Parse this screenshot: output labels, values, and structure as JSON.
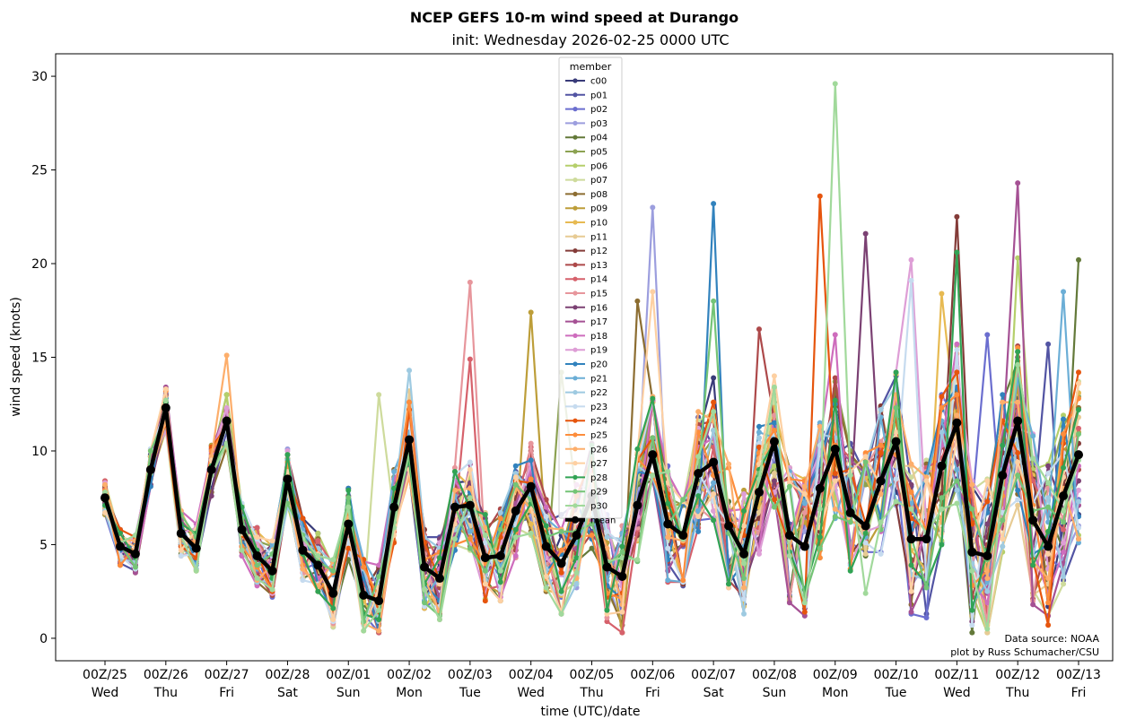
{
  "chart_data": {
    "type": "line",
    "title": "NCEP GEFS 10-m wind speed at Durango",
    "subtitle": "init: Wednesday 2026-02-25 0000 UTC",
    "xlabel": "time (UTC)/date",
    "ylabel": "wind speed (knots)",
    "ylim": [
      -1.2,
      31.2
    ],
    "yticks": [
      0,
      5,
      10,
      15,
      20,
      25,
      30
    ],
    "time_step_hours": 6,
    "x_ticks": [
      {
        "hour": 0,
        "line1": "00Z/25",
        "line2": "Wed"
      },
      {
        "hour": 24,
        "line1": "00Z/26",
        "line2": "Thu"
      },
      {
        "hour": 48,
        "line1": "00Z/27",
        "line2": "Fri"
      },
      {
        "hour": 72,
        "line1": "00Z/28",
        "line2": "Sat"
      },
      {
        "hour": 96,
        "line1": "00Z/01",
        "line2": "Sun"
      },
      {
        "hour": 120,
        "line1": "00Z/02",
        "line2": "Mon"
      },
      {
        "hour": 144,
        "line1": "00Z/03",
        "line2": "Tue"
      },
      {
        "hour": 168,
        "line1": "00Z/04",
        "line2": "Wed"
      },
      {
        "hour": 192,
        "line1": "00Z/05",
        "line2": "Thu"
      },
      {
        "hour": 216,
        "line1": "00Z/06",
        "line2": "Fri"
      },
      {
        "hour": 240,
        "line1": "00Z/07",
        "line2": "Sat"
      },
      {
        "hour": 264,
        "line1": "00Z/08",
        "line2": "Sun"
      },
      {
        "hour": 288,
        "line1": "00Z/09",
        "line2": "Mon"
      },
      {
        "hour": 312,
        "line1": "00Z/10",
        "line2": "Tue"
      },
      {
        "hour": 336,
        "line1": "00Z/11",
        "line2": "Wed"
      },
      {
        "hour": 360,
        "line1": "00Z/12",
        "line2": "Thu"
      },
      {
        "hour": 384,
        "line1": "00Z/13",
        "line2": "Fri"
      }
    ],
    "legend_title": "member",
    "legend_position": "top-center",
    "credit_lines": [
      "Data source: NOAA",
      "plot by Russ Schumacher/CSU"
    ],
    "mean": {
      "name": "mean",
      "color": "#000000",
      "values": [
        7.5,
        4.9,
        4.5,
        9.0,
        12.3,
        5.6,
        4.8,
        9.0,
        11.6,
        5.8,
        4.4,
        3.6,
        8.5,
        4.7,
        3.9,
        2.4,
        6.1,
        2.3,
        2.0,
        7.0,
        10.6,
        3.8,
        3.2,
        7.0,
        7.1,
        4.3,
        4.4,
        6.8,
        8.1,
        4.9,
        4.0,
        5.5,
        7.6,
        3.8,
        3.3,
        7.1,
        9.8,
        6.1,
        5.5,
        8.8,
        9.4,
        6.0,
        4.5,
        7.8,
        10.5,
        5.5,
        4.9,
        8.0,
        10.1,
        6.7,
        6.0,
        8.4,
        10.5,
        5.3,
        5.3,
        9.2,
        11.5,
        4.6,
        4.4,
        8.7,
        11.6,
        6.3,
        4.9,
        7.6,
        9.8
      ]
    },
    "series": [
      {
        "name": "c00",
        "color": "#393b79",
        "peak_index": 40,
        "peak_value": 13.9,
        "seed": 1
      },
      {
        "name": "p01",
        "color": "#5254a3",
        "peak_index": 62,
        "peak_value": 15.7,
        "seed": 2
      },
      {
        "name": "p02",
        "color": "#6b6ecf",
        "peak_index": 58,
        "peak_value": 16.2,
        "seed": 3
      },
      {
        "name": "p03",
        "color": "#9c9ede",
        "peak_index": 36,
        "peak_value": 23.0,
        "seed": 4
      },
      {
        "name": "p04",
        "color": "#637939",
        "peak_index": 64,
        "peak_value": 20.2,
        "seed": 5
      },
      {
        "name": "p05",
        "color": "#8ca252",
        "peak_index": 30,
        "peak_value": 14.2,
        "seed": 6
      },
      {
        "name": "p06",
        "color": "#b5cf6b",
        "peak_index": 60,
        "peak_value": 20.3,
        "seed": 7
      },
      {
        "name": "p07",
        "color": "#cedb9c",
        "peak_index": 18,
        "peak_value": 13.0,
        "seed": 8
      },
      {
        "name": "p08",
        "color": "#8c6d31",
        "peak_index": 35,
        "peak_value": 18.0,
        "seed": 9
      },
      {
        "name": "p09",
        "color": "#bd9e39",
        "peak_index": 28,
        "peak_value": 17.4,
        "seed": 10
      },
      {
        "name": "p10",
        "color": "#e7ba52",
        "peak_index": 55,
        "peak_value": 18.4,
        "seed": 11
      },
      {
        "name": "p11",
        "color": "#e7cb94",
        "peak_index": 20,
        "peak_value": 13.2,
        "seed": 12
      },
      {
        "name": "p12",
        "color": "#843c39",
        "peak_index": 56,
        "peak_value": 22.5,
        "seed": 13
      },
      {
        "name": "p13",
        "color": "#ad494a",
        "peak_index": 43,
        "peak_value": 16.5,
        "seed": 14
      },
      {
        "name": "p14",
        "color": "#d6616b",
        "peak_index": 24,
        "peak_value": 14.9,
        "seed": 15
      },
      {
        "name": "p15",
        "color": "#e7969c",
        "peak_index": 24,
        "peak_value": 19.0,
        "seed": 16
      },
      {
        "name": "p16",
        "color": "#7b4173",
        "peak_index": 50,
        "peak_value": 21.6,
        "seed": 17
      },
      {
        "name": "p17",
        "color": "#a55194",
        "peak_index": 60,
        "peak_value": 24.3,
        "seed": 18
      },
      {
        "name": "p18",
        "color": "#ce6dbd",
        "peak_index": 48,
        "peak_value": 16.2,
        "seed": 19
      },
      {
        "name": "p19",
        "color": "#de9ed6",
        "peak_index": 53,
        "peak_value": 20.2,
        "seed": 20
      },
      {
        "name": "p20",
        "color": "#3182bd",
        "peak_index": 40,
        "peak_value": 23.2,
        "seed": 21
      },
      {
        "name": "p21",
        "color": "#6baed6",
        "peak_index": 63,
        "peak_value": 18.5,
        "seed": 22
      },
      {
        "name": "p22",
        "color": "#9ecae1",
        "peak_index": 20,
        "peak_value": 14.3,
        "seed": 23
      },
      {
        "name": "p23",
        "color": "#c6dbef",
        "peak_index": 53,
        "peak_value": 19.1,
        "seed": 24
      },
      {
        "name": "p24",
        "color": "#e6550d",
        "peak_index": 47,
        "peak_value": 23.6,
        "seed": 25
      },
      {
        "name": "p25",
        "color": "#fd8d3c",
        "peak_index": 60,
        "peak_value": 15.5,
        "seed": 26
      },
      {
        "name": "p26",
        "color": "#fdae6b",
        "peak_index": 8,
        "peak_value": 15.1,
        "seed": 27
      },
      {
        "name": "p27",
        "color": "#fdd0a2",
        "peak_index": 36,
        "peak_value": 18.5,
        "seed": 28
      },
      {
        "name": "p28",
        "color": "#31a354",
        "peak_index": 56,
        "peak_value": 20.6,
        "seed": 29
      },
      {
        "name": "p29",
        "color": "#74c476",
        "peak_index": 40,
        "peak_value": 18.0,
        "seed": 30
      },
      {
        "name": "p30",
        "color": "#a1d99b",
        "peak_index": 48,
        "peak_value": 29.6,
        "seed": 31
      }
    ]
  }
}
